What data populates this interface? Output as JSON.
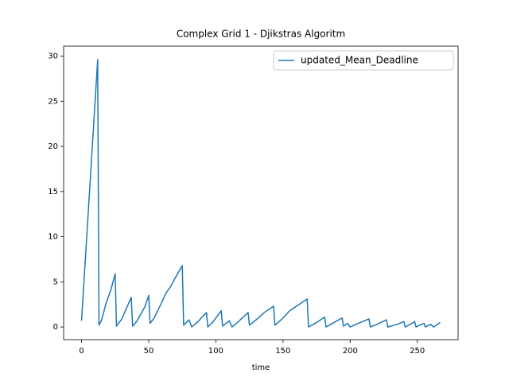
{
  "chart_data": {
    "type": "line",
    "title": "Complex Grid 1 - Djikstras Algoritm",
    "x_label": "time",
    "x": [
      0,
      12,
      13,
      15,
      18,
      22,
      25,
      26,
      30,
      37,
      38,
      41,
      47,
      50,
      51,
      54,
      59,
      63,
      66,
      70,
      75,
      76,
      80,
      82,
      86,
      93,
      94,
      98,
      104,
      105,
      110,
      112,
      116,
      124,
      125,
      130,
      136,
      143,
      144,
      150,
      155,
      160,
      168,
      169,
      175,
      181,
      182,
      188,
      194,
      195,
      198,
      200,
      206,
      214,
      215,
      220,
      227,
      228,
      235,
      240,
      241,
      248,
      249,
      253,
      255,
      256,
      260,
      262,
      264,
      267
    ],
    "series": [
      {
        "name": "updated_Mean_Deadline",
        "color": "#1f77b4",
        "values": [
          0.7,
          29.6,
          0.2,
          0.8,
          2.5,
          4.2,
          5.9,
          0.1,
          0.9,
          3.3,
          0.1,
          0.6,
          2.2,
          3.5,
          0.4,
          1.0,
          2.5,
          3.8,
          4.4,
          5.5,
          6.8,
          0.2,
          0.8,
          0.0,
          0.5,
          1.6,
          0.0,
          0.6,
          1.8,
          0.1,
          0.7,
          0.0,
          0.5,
          1.6,
          0.2,
          0.8,
          1.6,
          2.3,
          0.2,
          1.0,
          1.8,
          2.3,
          3.1,
          0.0,
          0.5,
          1.1,
          0.0,
          0.5,
          1.0,
          0.1,
          0.4,
          0.0,
          0.4,
          0.9,
          0.0,
          0.3,
          0.8,
          0.0,
          0.3,
          0.6,
          0.0,
          0.6,
          0.0,
          0.3,
          0.4,
          0.0,
          0.3,
          0.0,
          0.2,
          0.5
        ]
      }
    ],
    "xlim": [
      -13.35,
      280.35
    ],
    "xticks": [
      0,
      50,
      100,
      150,
      200,
      250
    ],
    "ylim": [
      -1.4,
      31.1
    ],
    "yticks": [
      0,
      5,
      10,
      15,
      20,
      25,
      30
    ],
    "legend": "upper right"
  }
}
